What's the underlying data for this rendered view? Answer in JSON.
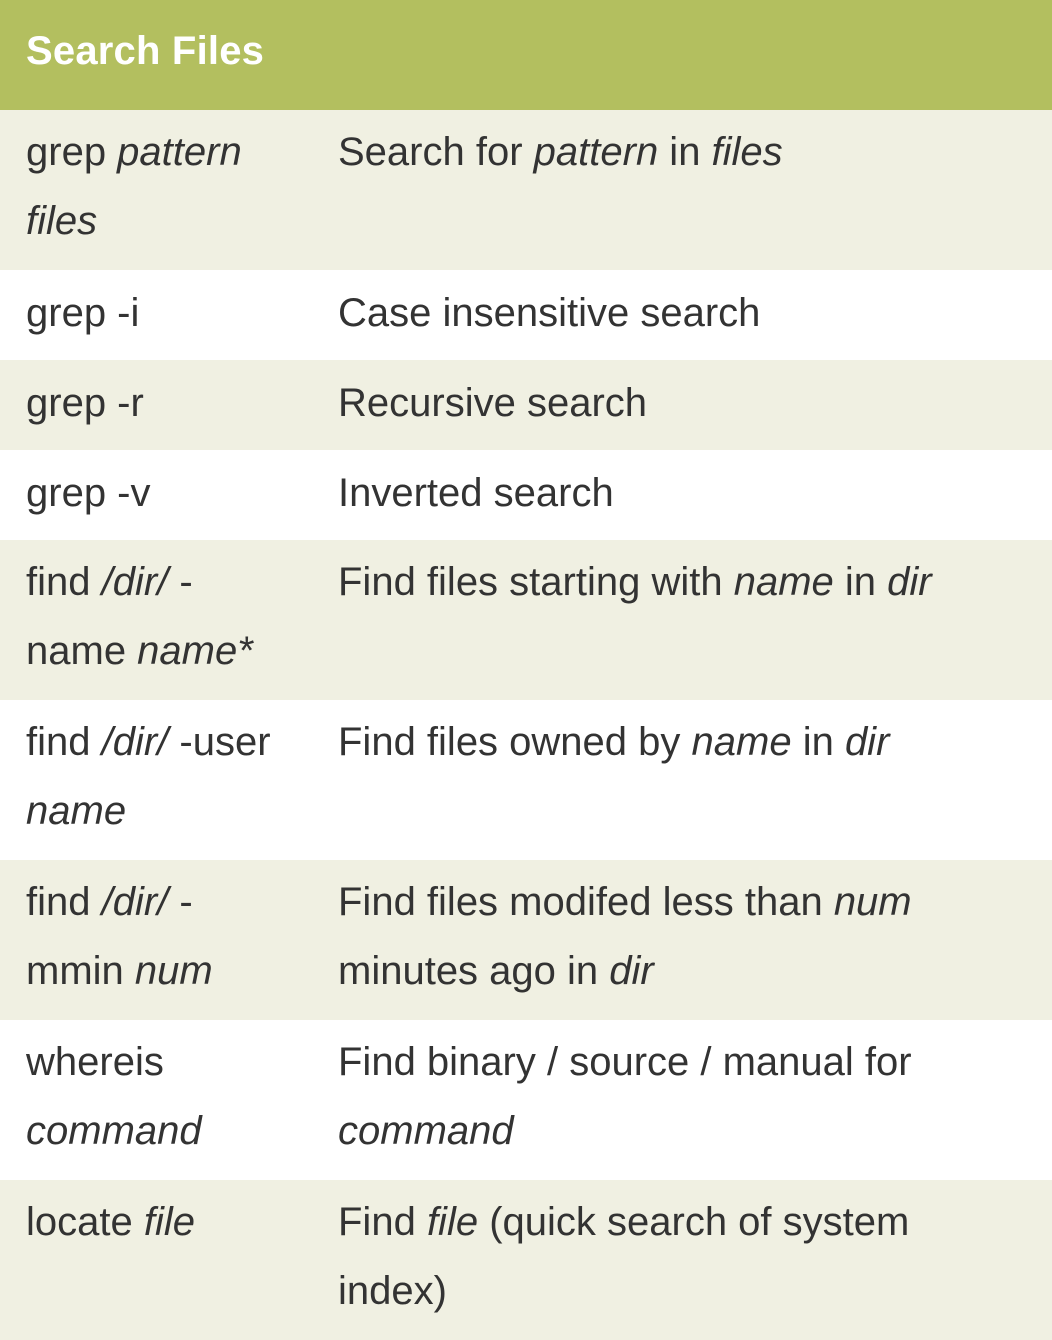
{
  "title": "Search Files",
  "rows": [
    {
      "cmd": [
        {
          "t": "grep ",
          "i": false
        },
        {
          "t": "pattern",
          "i": true
        },
        {
          "t": "\n",
          "i": false
        },
        {
          "t": "files",
          "i": true
        }
      ],
      "desc": [
        {
          "t": "Search for ",
          "i": false
        },
        {
          "t": "pattern",
          "i": true
        },
        {
          "t": " in ",
          "i": false
        },
        {
          "t": "files",
          "i": true
        }
      ]
    },
    {
      "cmd": [
        {
          "t": "grep -i",
          "i": false
        }
      ],
      "desc": [
        {
          "t": "Case insensitive search",
          "i": false
        }
      ]
    },
    {
      "cmd": [
        {
          "t": "grep -r",
          "i": false
        }
      ],
      "desc": [
        {
          "t": "Recursive search",
          "i": false
        }
      ]
    },
    {
      "cmd": [
        {
          "t": "grep -v",
          "i": false
        }
      ],
      "desc": [
        {
          "t": "Inverted search",
          "i": false
        }
      ]
    },
    {
      "cmd": [
        {
          "t": "find ",
          "i": false
        },
        {
          "t": "/dir/",
          "i": true
        },
        {
          "t": " -\nname ",
          "i": false
        },
        {
          "t": "name*",
          "i": true
        }
      ],
      "desc": [
        {
          "t": "Find files starting with ",
          "i": false
        },
        {
          "t": "name",
          "i": true
        },
        {
          "t": " in ",
          "i": false
        },
        {
          "t": "dir",
          "i": true
        }
      ]
    },
    {
      "cmd": [
        {
          "t": "find ",
          "i": false
        },
        {
          "t": "/dir/",
          "i": true
        },
        {
          "t": " -user\n",
          "i": false
        },
        {
          "t": "name",
          "i": true
        }
      ],
      "desc": [
        {
          "t": "Find files owned by ",
          "i": false
        },
        {
          "t": "name",
          "i": true
        },
        {
          "t": " in ",
          "i": false
        },
        {
          "t": "dir",
          "i": true
        }
      ]
    },
    {
      "cmd": [
        {
          "t": "find ",
          "i": false
        },
        {
          "t": "/dir/",
          "i": true
        },
        {
          "t": " -\nmmin ",
          "i": false
        },
        {
          "t": "num",
          "i": true
        }
      ],
      "desc": [
        {
          "t": "Find files modifed less than ",
          "i": false
        },
        {
          "t": "num",
          "i": true
        },
        {
          "t": "\nminutes ago in ",
          "i": false
        },
        {
          "t": "dir",
          "i": true
        }
      ]
    },
    {
      "cmd": [
        {
          "t": "whereis\n",
          "i": false
        },
        {
          "t": "command",
          "i": true
        }
      ],
      "desc": [
        {
          "t": "Find binary / source / manual for\n",
          "i": false
        },
        {
          "t": "command",
          "i": true
        }
      ]
    },
    {
      "cmd": [
        {
          "t": "locate ",
          "i": false
        },
        {
          "t": "file",
          "i": true
        }
      ],
      "desc": [
        {
          "t": "Find ",
          "i": false
        },
        {
          "t": "file",
          "i": true
        },
        {
          "t": " (quick search of system\nindex)",
          "i": false
        }
      ]
    }
  ]
}
